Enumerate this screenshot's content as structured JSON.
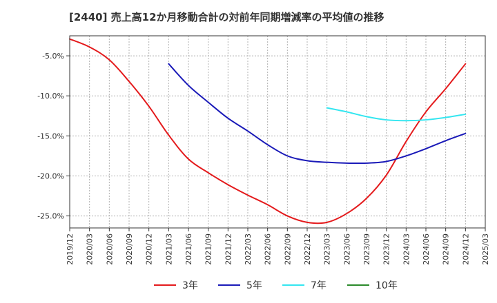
{
  "chart_data": {
    "type": "line",
    "title": "[2440]  売上高12か月移動合計の対前年同期増減率の平均値の推移",
    "xlabel": "",
    "ylabel": "",
    "ylim": [
      -26.5,
      -2.5
    ],
    "y_ticks": [
      -5.0,
      -10.0,
      -15.0,
      -20.0,
      -25.0
    ],
    "y_tick_labels": [
      "-5.0%",
      "-10.0%",
      "-15.0%",
      "-20.0%",
      "-25.0%"
    ],
    "x_tick_labels": [
      "2019/12",
      "2020/03",
      "2020/06",
      "2020/09",
      "2020/12",
      "2021/03",
      "2021/06",
      "2021/09",
      "2021/12",
      "2022/03",
      "2022/06",
      "2022/09",
      "2022/12",
      "2023/03",
      "2023/06",
      "2023/09",
      "2023/12",
      "2024/03",
      "2024/06",
      "2024/09",
      "2024/12",
      "2025/03"
    ],
    "grid": true,
    "legend_position": "bottom",
    "series": [
      {
        "name": "3年",
        "color": "#e41a1c",
        "values": [
          [
            "2019/12",
            -2.9
          ],
          [
            "2020/03",
            -3.9
          ],
          [
            "2020/06",
            -5.5
          ],
          [
            "2020/09",
            -8.2
          ],
          [
            "2020/12",
            -11.3
          ],
          [
            "2021/03",
            -14.9
          ],
          [
            "2021/06",
            -17.9
          ],
          [
            "2021/09",
            -19.6
          ],
          [
            "2021/12",
            -21.1
          ],
          [
            "2022/03",
            -22.4
          ],
          [
            "2022/06",
            -23.6
          ],
          [
            "2022/09",
            -25.0
          ],
          [
            "2022/12",
            -25.8
          ],
          [
            "2023/03",
            -25.8
          ],
          [
            "2023/06",
            -24.7
          ],
          [
            "2023/09",
            -22.8
          ],
          [
            "2023/12",
            -19.9
          ],
          [
            "2024/03",
            -15.7
          ],
          [
            "2024/06",
            -12.0
          ],
          [
            "2024/09",
            -9.1
          ],
          [
            "2024/12",
            -6.0
          ]
        ]
      },
      {
        "name": "5年",
        "color": "#1a1ab8",
        "values": [
          [
            "2021/03",
            -6.0
          ],
          [
            "2021/06",
            -8.7
          ],
          [
            "2021/09",
            -10.8
          ],
          [
            "2021/12",
            -12.8
          ],
          [
            "2022/03",
            -14.4
          ],
          [
            "2022/06",
            -16.1
          ],
          [
            "2022/09",
            -17.5
          ],
          [
            "2022/12",
            -18.1
          ],
          [
            "2023/03",
            -18.3
          ],
          [
            "2023/06",
            -18.4
          ],
          [
            "2023/09",
            -18.4
          ],
          [
            "2023/12",
            -18.2
          ],
          [
            "2024/03",
            -17.5
          ],
          [
            "2024/06",
            -16.6
          ],
          [
            "2024/09",
            -15.6
          ],
          [
            "2024/12",
            -14.7
          ]
        ]
      },
      {
        "name": "7年",
        "color": "#33e6f0",
        "values": [
          [
            "2023/03",
            -11.5
          ],
          [
            "2023/06",
            -12.0
          ],
          [
            "2023/09",
            -12.6
          ],
          [
            "2023/12",
            -13.0
          ],
          [
            "2024/03",
            -13.1
          ],
          [
            "2024/06",
            -13.0
          ],
          [
            "2024/09",
            -12.7
          ],
          [
            "2024/12",
            -12.3
          ]
        ]
      },
      {
        "name": "10年",
        "color": "#2a8a2a",
        "values": []
      }
    ]
  }
}
